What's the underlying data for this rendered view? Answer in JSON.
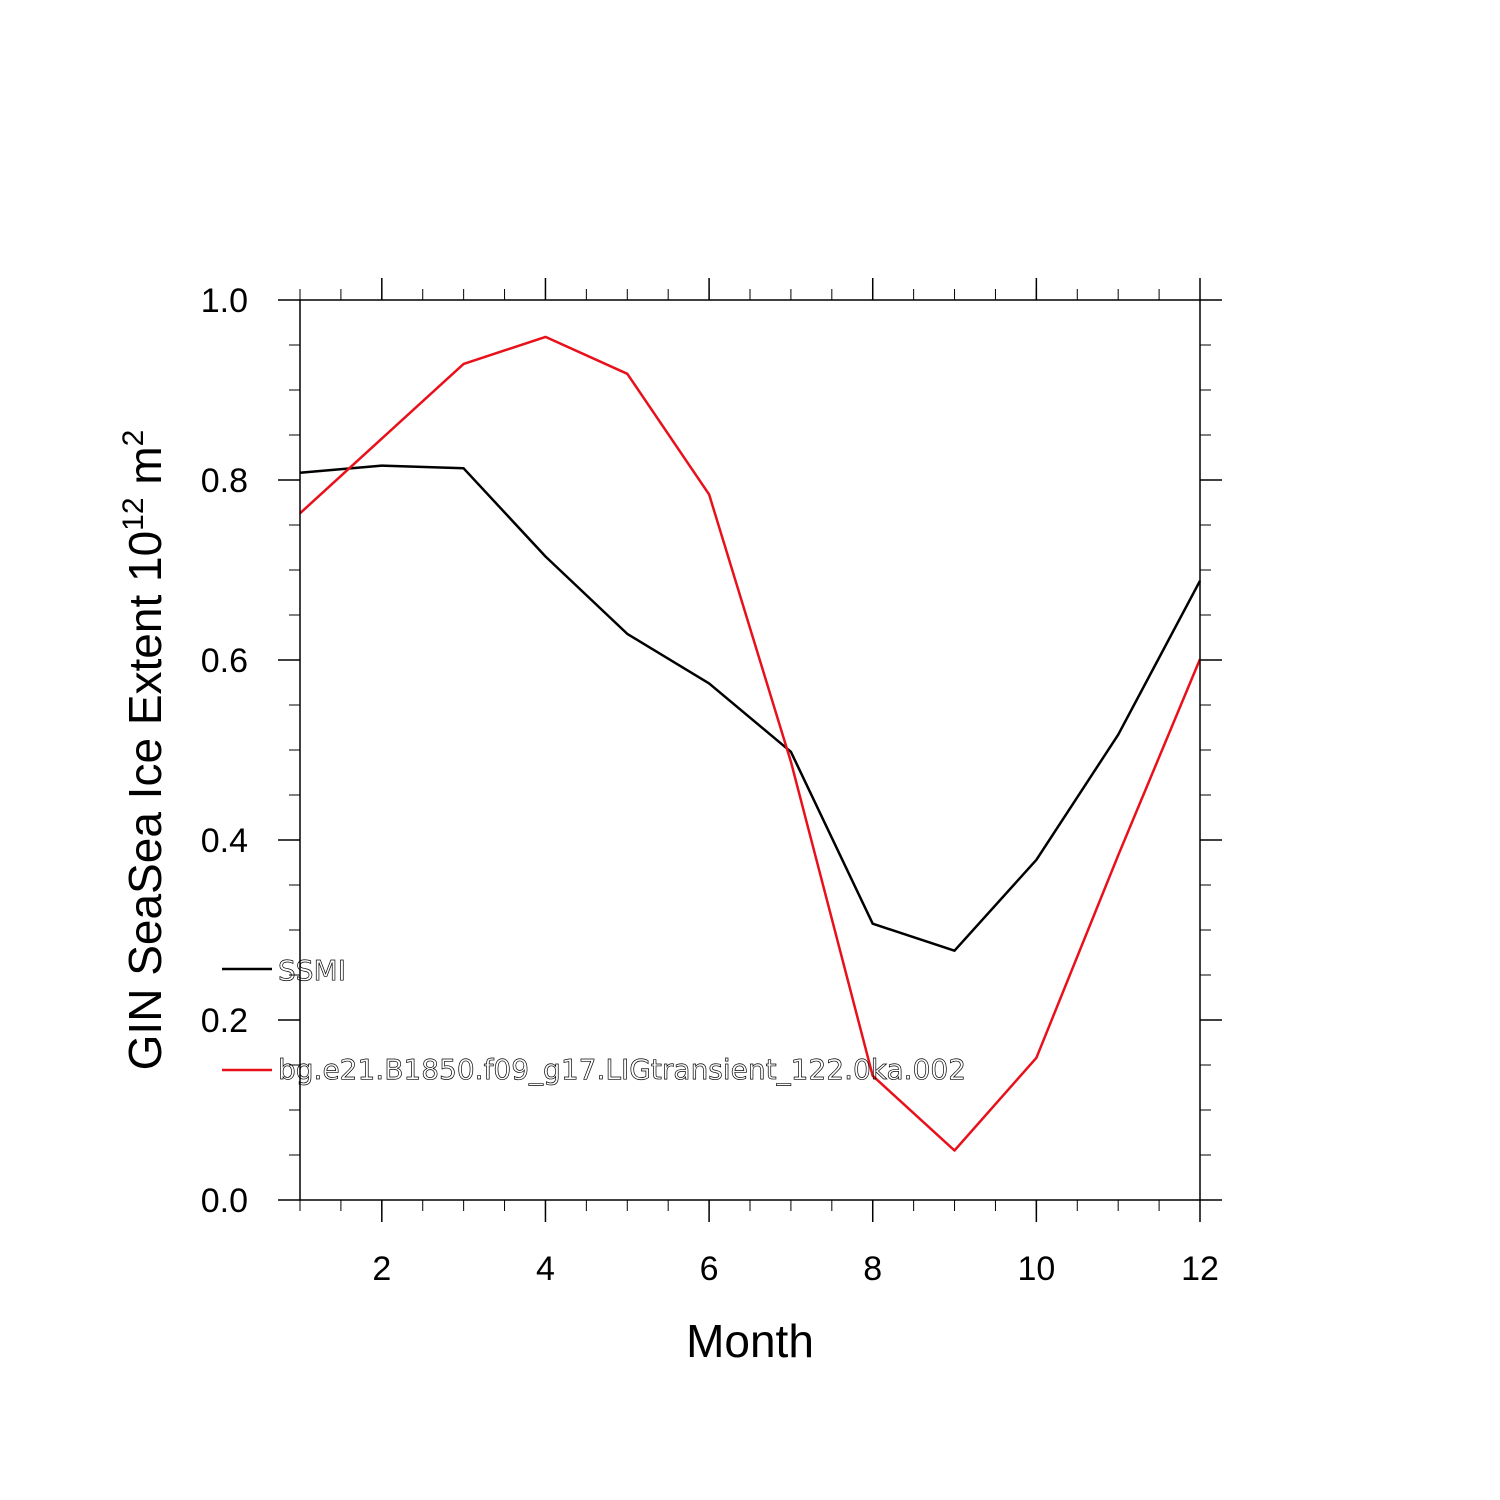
{
  "chart_data": {
    "type": "line",
    "title": "",
    "xlabel": "Month",
    "ylabel_parts": [
      "GIN SeaSea Ice Extent 10",
      "12",
      " m",
      "2"
    ],
    "xlim": [
      1,
      12
    ],
    "ylim": [
      0,
      1.0
    ],
    "x_ticks": [
      2,
      4,
      6,
      8,
      10,
      12
    ],
    "x_tick_labels": [
      "2",
      "4",
      "6",
      "8",
      "10",
      "12"
    ],
    "y_ticks": [
      0,
      0.2,
      0.4,
      0.6,
      0.8,
      1.0
    ],
    "y_tick_labels": [
      "0.0",
      "0.2",
      "0.4",
      "0.6",
      "0.8",
      "1.0"
    ],
    "grid": false,
    "legend_position": "lower-left",
    "x": [
      1,
      2,
      3,
      4,
      5,
      6,
      7,
      8,
      9,
      10,
      11,
      12
    ],
    "series": [
      {
        "name": "SSMI",
        "color": "#000000",
        "values": [
          0.808,
          0.816,
          0.813,
          0.715,
          0.629,
          0.574,
          0.498,
          0.307,
          0.277,
          0.378,
          0.517,
          0.688
        ]
      },
      {
        "name": "bg.e21.B1850.f09_g17.LIGtransient_122.0ka.002",
        "color": "#e8101a",
        "values": [
          0.763,
          0.846,
          0.929,
          0.959,
          0.918,
          0.784,
          0.487,
          0.138,
          0.055,
          0.158,
          0.383,
          0.601
        ]
      }
    ]
  }
}
